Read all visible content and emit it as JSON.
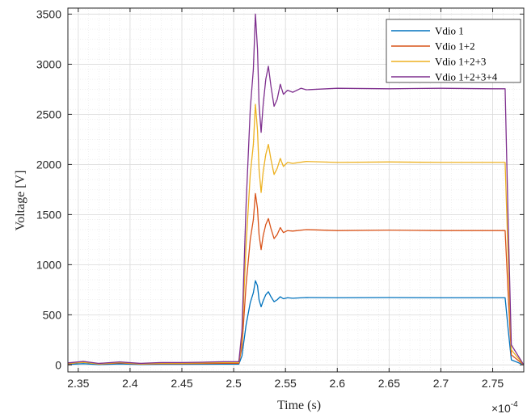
{
  "chart_data": {
    "type": "line",
    "title": "",
    "xlabel": "Time (s)",
    "ylabel": "Voltage [V]",
    "x_multiplier": "×10",
    "x_exponent": "-4",
    "xlim": [
      2.34,
      2.78
    ],
    "ylim": [
      -70,
      3560
    ],
    "x_ticks": [
      2.35,
      2.4,
      2.45,
      2.5,
      2.55,
      2.6,
      2.65,
      2.7,
      2.75
    ],
    "x_tick_labels": [
      "2.35",
      "2.4",
      "2.45",
      "2.5",
      "2.55",
      "2.6",
      "2.65",
      "2.7",
      "2.75"
    ],
    "y_ticks": [
      0,
      500,
      1000,
      1500,
      2000,
      2500,
      3000,
      3500
    ],
    "y_tick_labels": [
      "0",
      "500",
      "1000",
      "1500",
      "2000",
      "2500",
      "3000",
      "3500"
    ],
    "grid": true,
    "minor_grid": true,
    "legend_position": "top-right",
    "series": [
      {
        "name": "Vdio 1",
        "color": "#0072BD",
        "points": [
          [
            2.34,
            5
          ],
          [
            2.355,
            12
          ],
          [
            2.37,
            3
          ],
          [
            2.39,
            10
          ],
          [
            2.41,
            4
          ],
          [
            2.43,
            6
          ],
          [
            2.45,
            6
          ],
          [
            2.47,
            7
          ],
          [
            2.49,
            8
          ],
          [
            2.505,
            8
          ],
          [
            2.508,
            90
          ],
          [
            2.512,
            400
          ],
          [
            2.516,
            620
          ],
          [
            2.519,
            720
          ],
          [
            2.521,
            840
          ],
          [
            2.523,
            790
          ],
          [
            2.5245,
            650
          ],
          [
            2.5265,
            580
          ],
          [
            2.5285,
            640
          ],
          [
            2.531,
            700
          ],
          [
            2.5335,
            730
          ],
          [
            2.536,
            680
          ],
          [
            2.539,
            630
          ],
          [
            2.542,
            650
          ],
          [
            2.545,
            680
          ],
          [
            2.548,
            660
          ],
          [
            2.552,
            670
          ],
          [
            2.557,
            665
          ],
          [
            2.57,
            672
          ],
          [
            2.6,
            670
          ],
          [
            2.65,
            672
          ],
          [
            2.7,
            670
          ],
          [
            2.75,
            670
          ],
          [
            2.762,
            670
          ],
          [
            2.765,
            350
          ],
          [
            2.768,
            50
          ],
          [
            2.78,
            0
          ]
        ]
      },
      {
        "name": "Vdio 1+2",
        "color": "#D95319",
        "points": [
          [
            2.34,
            10
          ],
          [
            2.355,
            30
          ],
          [
            2.37,
            8
          ],
          [
            2.39,
            20
          ],
          [
            2.41,
            8
          ],
          [
            2.43,
            12
          ],
          [
            2.45,
            12
          ],
          [
            2.47,
            14
          ],
          [
            2.49,
            16
          ],
          [
            2.505,
            16
          ],
          [
            2.508,
            180
          ],
          [
            2.512,
            800
          ],
          [
            2.516,
            1250
          ],
          [
            2.519,
            1450
          ],
          [
            2.521,
            1710
          ],
          [
            2.523,
            1560
          ],
          [
            2.5245,
            1300
          ],
          [
            2.5265,
            1150
          ],
          [
            2.5285,
            1290
          ],
          [
            2.531,
            1400
          ],
          [
            2.5335,
            1460
          ],
          [
            2.536,
            1360
          ],
          [
            2.539,
            1260
          ],
          [
            2.542,
            1300
          ],
          [
            2.545,
            1370
          ],
          [
            2.548,
            1320
          ],
          [
            2.552,
            1340
          ],
          [
            2.557,
            1335
          ],
          [
            2.57,
            1350
          ],
          [
            2.6,
            1340
          ],
          [
            2.65,
            1345
          ],
          [
            2.7,
            1340
          ],
          [
            2.75,
            1340
          ],
          [
            2.762,
            1340
          ],
          [
            2.765,
            700
          ],
          [
            2.768,
            100
          ],
          [
            2.78,
            0
          ]
        ]
      },
      {
        "name": "Vdio 1+2+3",
        "color": "#EDB120",
        "points": [
          [
            2.34,
            15
          ],
          [
            2.355,
            25
          ],
          [
            2.37,
            10
          ],
          [
            2.39,
            25
          ],
          [
            2.41,
            10
          ],
          [
            2.43,
            18
          ],
          [
            2.45,
            18
          ],
          [
            2.47,
            20
          ],
          [
            2.49,
            24
          ],
          [
            2.505,
            24
          ],
          [
            2.508,
            260
          ],
          [
            2.512,
            1200
          ],
          [
            2.516,
            1900
          ],
          [
            2.519,
            2200
          ],
          [
            2.521,
            2600
          ],
          [
            2.523,
            2340
          ],
          [
            2.5245,
            1950
          ],
          [
            2.5265,
            1720
          ],
          [
            2.5285,
            1930
          ],
          [
            2.531,
            2100
          ],
          [
            2.5335,
            2200
          ],
          [
            2.536,
            2050
          ],
          [
            2.539,
            1900
          ],
          [
            2.542,
            1960
          ],
          [
            2.545,
            2060
          ],
          [
            2.548,
            1980
          ],
          [
            2.552,
            2020
          ],
          [
            2.557,
            2010
          ],
          [
            2.57,
            2030
          ],
          [
            2.6,
            2020
          ],
          [
            2.65,
            2025
          ],
          [
            2.7,
            2020
          ],
          [
            2.75,
            2020
          ],
          [
            2.762,
            2020
          ],
          [
            2.765,
            1050
          ],
          [
            2.768,
            150
          ],
          [
            2.78,
            0
          ]
        ]
      },
      {
        "name": "Vdio 1+2+3+4",
        "color": "#7E2F8E",
        "points": [
          [
            2.34,
            20
          ],
          [
            2.355,
            35
          ],
          [
            2.37,
            15
          ],
          [
            2.39,
            30
          ],
          [
            2.41,
            15
          ],
          [
            2.43,
            24
          ],
          [
            2.45,
            24
          ],
          [
            2.47,
            27
          ],
          [
            2.49,
            32
          ],
          [
            2.505,
            32
          ],
          [
            2.508,
            340
          ],
          [
            2.512,
            1600
          ],
          [
            2.516,
            2550
          ],
          [
            2.519,
            2950
          ],
          [
            2.521,
            3500
          ],
          [
            2.523,
            3150
          ],
          [
            2.5245,
            2600
          ],
          [
            2.5265,
            2320
          ],
          [
            2.5285,
            2600
          ],
          [
            2.531,
            2850
          ],
          [
            2.5335,
            2980
          ],
          [
            2.536,
            2780
          ],
          [
            2.539,
            2580
          ],
          [
            2.542,
            2650
          ],
          [
            2.545,
            2800
          ],
          [
            2.548,
            2700
          ],
          [
            2.552,
            2740
          ],
          [
            2.557,
            2720
          ],
          [
            2.565,
            2760
          ],
          [
            2.57,
            2745
          ],
          [
            2.6,
            2760
          ],
          [
            2.65,
            2755
          ],
          [
            2.7,
            2760
          ],
          [
            2.75,
            2755
          ],
          [
            2.762,
            2755
          ],
          [
            2.765,
            1400
          ],
          [
            2.768,
            200
          ],
          [
            2.78,
            0
          ]
        ]
      }
    ]
  }
}
